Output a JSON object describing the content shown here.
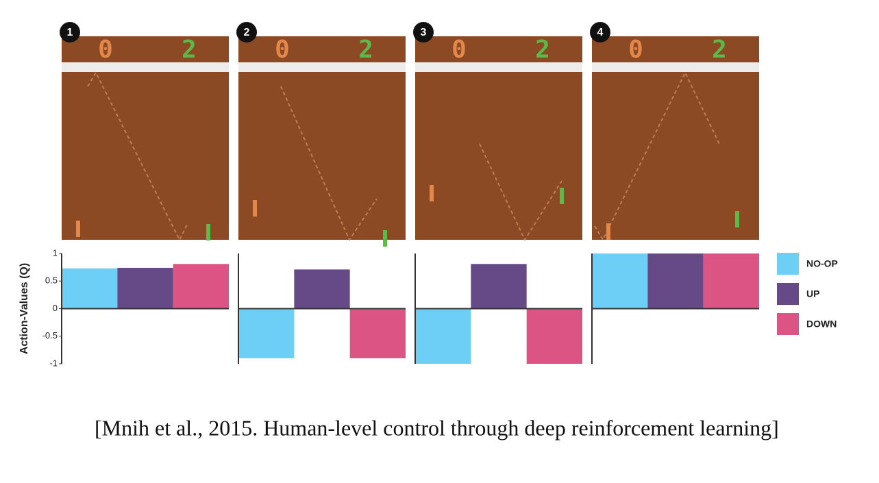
{
  "chart_data": {
    "type": "bar",
    "categories": [
      "1",
      "2",
      "3",
      "4"
    ],
    "game_scores": [
      "0",
      "2"
    ],
    "y_label": "Action-Values (Q)",
    "ylim": [
      -1,
      1
    ],
    "yticks": [
      -1,
      -0.5,
      0,
      0.5,
      1
    ],
    "series": [
      {
        "name": "NO-OP",
        "color": "#6dcff6",
        "values": [
          0.73,
          -0.9,
          -1,
          1
        ]
      },
      {
        "name": "UP",
        "color": "#664a87",
        "values": [
          0.74,
          0.71,
          0.81,
          1
        ]
      },
      {
        "name": "DOWN",
        "color": "#dc5483",
        "values": [
          0.81,
          -0.9,
          -1,
          1
        ]
      }
    ],
    "caption": "[Mnih et al., 2015. Human-level control through deep reinforcement learning]"
  }
}
